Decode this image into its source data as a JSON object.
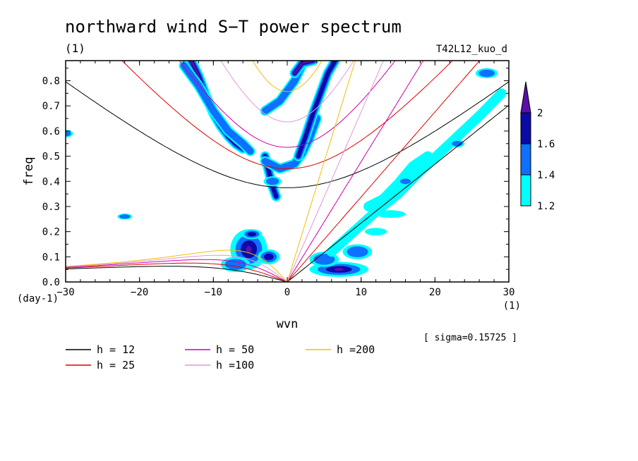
{
  "chart_data": {
    "type": "heatmap",
    "title": "northward wind S−T power spectrum",
    "subtitle": "(1)",
    "case_label": "T42L12_kuo_d",
    "xlabel": "wvn",
    "ylabel": "freq",
    "x_unit": "(1)",
    "y_unit": "(day-1)",
    "xlim": [
      -30,
      30
    ],
    "ylim": [
      0,
      0.88
    ],
    "x_ticks": [
      -30,
      -20,
      -10,
      0,
      10,
      20,
      30
    ],
    "x_tick_labels": [
      "−30",
      "−20",
      "−10",
      "0",
      "10",
      "20",
      "30"
    ],
    "y_ticks": [
      0.0,
      0.1,
      0.2,
      0.3,
      0.4,
      0.5,
      0.6,
      0.7,
      0.8
    ],
    "y_tick_labels": [
      "0.0",
      "0.1",
      "0.2",
      "0.3",
      "0.4",
      "0.5",
      "0.6",
      "0.7",
      "0.8"
    ],
    "sigma_note": "[ sigma=0.15725 ]",
    "colorbar": {
      "levels": [
        1.2,
        1.4,
        1.6,
        2
      ],
      "level_labels": [
        "1.2",
        "1.4",
        "1.6",
        "2"
      ],
      "colors": [
        "#00ffff",
        "#0f6fff",
        "#0a0aa8",
        "#5a0fa8"
      ]
    },
    "dispersion_curves": [
      {
        "name": "h = 12",
        "h": 12,
        "color": "#000000"
      },
      {
        "name": "h = 25",
        "h": 25,
        "color": "#e00000"
      },
      {
        "name": "h = 50",
        "h": 50,
        "color": "#cc00aa"
      },
      {
        "name": "h =100",
        "h": 100,
        "color": "#dd99dd"
      },
      {
        "name": "h =200",
        "h": 200,
        "color": "#f0c000"
      }
    ],
    "features": [
      {
        "type": "curve",
        "points": [
          [
            -13,
            0.88
          ],
          [
            -12,
            0.82
          ],
          [
            -11,
            0.74
          ],
          [
            -10,
            0.67
          ],
          [
            -9,
            0.62
          ],
          [
            -8,
            0.58
          ],
          [
            -7,
            0.55
          ],
          [
            -6,
            0.53
          ]
        ],
        "level": 4
      },
      {
        "type": "curve",
        "points": [
          [
            -14,
            0.86
          ],
          [
            -12,
            0.78
          ],
          [
            -10,
            0.68
          ],
          [
            -8,
            0.6
          ],
          [
            -6,
            0.55
          ],
          [
            -5,
            0.52
          ]
        ],
        "level": 2
      },
      {
        "type": "curve",
        "points": [
          [
            -3,
            0.5
          ],
          [
            -2.5,
            0.44
          ],
          [
            -2,
            0.38
          ],
          [
            -1.5,
            0.34
          ]
        ],
        "level": 3
      },
      {
        "type": "curve",
        "points": [
          [
            -3,
            0.48
          ],
          [
            -1,
            0.45
          ],
          [
            1,
            0.47
          ],
          [
            2,
            0.51
          ],
          [
            3,
            0.57
          ],
          [
            4,
            0.65
          ]
        ],
        "level": 2
      },
      {
        "type": "curve",
        "points": [
          [
            1.5,
            0.5
          ],
          [
            2.5,
            0.58
          ],
          [
            3.5,
            0.67
          ],
          [
            4.5,
            0.75
          ],
          [
            5.5,
            0.83
          ],
          [
            6.5,
            0.88
          ]
        ],
        "level": 3
      },
      {
        "type": "curve",
        "points": [
          [
            -3,
            0.68
          ],
          [
            -1,
            0.72
          ],
          [
            1,
            0.8
          ],
          [
            2,
            0.86
          ]
        ],
        "level": 2
      },
      {
        "type": "curve",
        "points": [
          [
            1,
            0.83
          ],
          [
            2,
            0.87
          ],
          [
            3.5,
            0.88
          ]
        ],
        "level": 4
      },
      {
        "type": "blob",
        "x": -5.2,
        "y": 0.13,
        "rx": 2.5,
        "ry": 0.08,
        "level": 4
      },
      {
        "type": "blob",
        "x": -4.8,
        "y": 0.19,
        "rx": 1.4,
        "ry": 0.02,
        "level": 3
      },
      {
        "type": "blob",
        "x": -2.5,
        "y": 0.1,
        "rx": 1.5,
        "ry": 0.03,
        "level": 3
      },
      {
        "type": "blob",
        "x": -7,
        "y": 0.07,
        "rx": 2,
        "ry": 0.03,
        "level": 2
      },
      {
        "type": "blob",
        "x": 7,
        "y": 0.05,
        "rx": 4,
        "ry": 0.03,
        "level": 4
      },
      {
        "type": "blob",
        "x": 5,
        "y": 0.09,
        "rx": 2,
        "ry": 0.03,
        "level": 2
      },
      {
        "type": "blob",
        "x": 9.5,
        "y": 0.12,
        "rx": 2,
        "ry": 0.03,
        "level": 2
      },
      {
        "type": "curve",
        "points": [
          [
            6,
            0.12
          ],
          [
            9,
            0.2
          ],
          [
            12,
            0.28
          ],
          [
            15,
            0.35
          ],
          [
            18,
            0.44
          ],
          [
            22,
            0.55
          ],
          [
            26,
            0.66
          ],
          [
            29,
            0.75
          ]
        ],
        "level": 1
      },
      {
        "type": "curve",
        "points": [
          [
            11,
            0.3
          ],
          [
            13,
            0.33
          ],
          [
            15,
            0.39
          ],
          [
            17,
            0.46
          ],
          [
            19,
            0.5
          ]
        ],
        "level": 1
      },
      {
        "type": "blob",
        "x": 16,
        "y": 0.4,
        "rx": 1,
        "ry": 0.015,
        "level": 2
      },
      {
        "type": "blob",
        "x": 23,
        "y": 0.55,
        "rx": 1,
        "ry": 0.015,
        "level": 2
      },
      {
        "type": "blob",
        "x": 27,
        "y": 0.83,
        "rx": 1.5,
        "ry": 0.02,
        "level": 2
      },
      {
        "type": "blob",
        "x": -22,
        "y": 0.26,
        "rx": 1,
        "ry": 0.012,
        "level": 2
      },
      {
        "type": "blob",
        "x": -30,
        "y": 0.59,
        "rx": 1,
        "ry": 0.015,
        "level": 2
      },
      {
        "type": "blob",
        "x": -2,
        "y": 0.4,
        "rx": 1.2,
        "ry": 0.02,
        "level": 2
      },
      {
        "type": "blob",
        "x": 12,
        "y": 0.2,
        "rx": 1.5,
        "ry": 0.015,
        "level": 1
      },
      {
        "type": "blob",
        "x": 14,
        "y": 0.27,
        "rx": 2,
        "ry": 0.015,
        "level": 1
      }
    ],
    "grid": false,
    "legend_position": "bottom-left"
  }
}
